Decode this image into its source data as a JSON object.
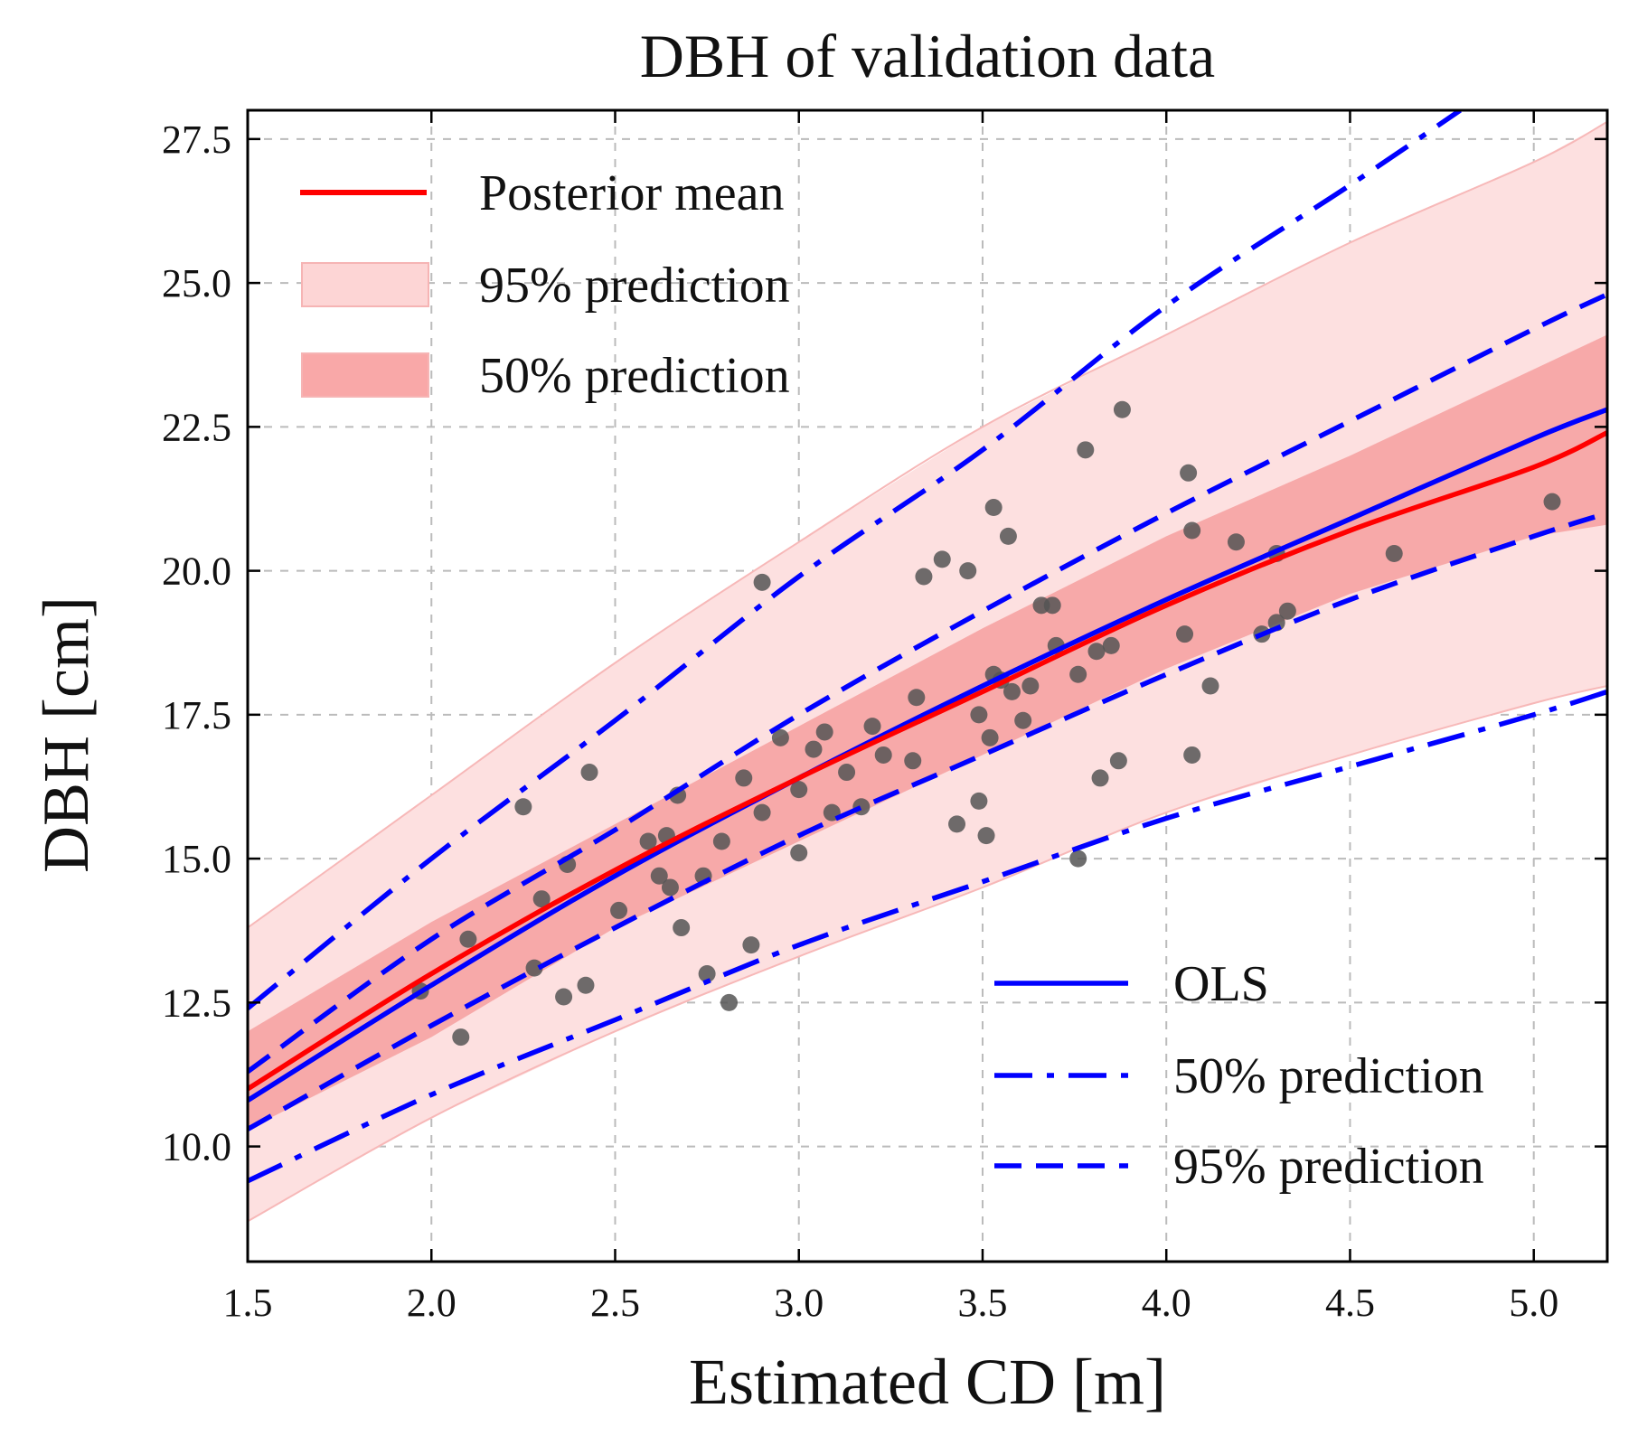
{
  "chart_data": {
    "type": "scatter",
    "title": "DBH of validation data",
    "xlabel": "Estimated CD [m]",
    "ylabel": "DBH [cm]",
    "xlim": [
      1.5,
      5.2
    ],
    "ylim": [
      8.0,
      28.0
    ],
    "xticks": [
      1.5,
      2.0,
      2.5,
      3.0,
      3.5,
      4.0,
      4.5,
      5.0
    ],
    "yticks": [
      10.0,
      12.5,
      15.0,
      17.5,
      20.0,
      22.5,
      25.0,
      27.5
    ],
    "grid": true,
    "legends": {
      "bayesian": {
        "placement": "top-left",
        "items": [
          {
            "label": "Posterior mean",
            "style": "line",
            "color": "#ff0000"
          },
          {
            "label": "95% prediction",
            "style": "band",
            "color": "#fdd5d5"
          },
          {
            "label": "50% prediction",
            "style": "band",
            "color": "#f9a8a8"
          }
        ]
      },
      "ols": {
        "placement": "bottom-right",
        "items": [
          {
            "label": "OLS",
            "style": "solid",
            "color": "#0000ff"
          },
          {
            "label": "50% prediction",
            "style": "dashdot",
            "color": "#0000ff"
          },
          {
            "label": "95% prediction",
            "style": "dashed",
            "color": "#0000ff"
          }
        ]
      }
    },
    "curves": {
      "posterior_mean": {
        "x": [
          1.5,
          2.0,
          2.5,
          3.0,
          3.5,
          4.0,
          4.5,
          5.0,
          5.2
        ],
        "y": [
          11.0,
          13.0,
          14.8,
          16.4,
          17.9,
          19.4,
          20.7,
          21.8,
          22.4
        ]
      },
      "band95_upper": {
        "x": [
          1.5,
          2.0,
          2.5,
          3.0,
          3.5,
          4.0,
          4.5,
          5.0,
          5.2
        ],
        "y": [
          13.8,
          16.1,
          18.4,
          20.5,
          22.5,
          24.1,
          25.7,
          27.1,
          27.8
        ]
      },
      "band95_lower": {
        "x": [
          1.5,
          2.0,
          2.5,
          3.0,
          3.5,
          4.0,
          4.5,
          5.0,
          5.2
        ],
        "y": [
          8.7,
          10.5,
          12.0,
          13.3,
          14.5,
          15.8,
          16.8,
          17.7,
          18.0
        ]
      },
      "band50_upper": {
        "x": [
          1.5,
          2.0,
          2.5,
          3.0,
          3.5,
          4.0,
          4.5,
          5.0,
          5.2
        ],
        "y": [
          12.0,
          13.9,
          15.6,
          17.3,
          19.0,
          20.6,
          22.0,
          23.5,
          24.1
        ]
      },
      "band50_lower": {
        "x": [
          1.5,
          2.0,
          2.5,
          3.0,
          3.5,
          4.0,
          4.5,
          5.0,
          5.2
        ],
        "y": [
          10.3,
          11.9,
          13.8,
          15.3,
          16.8,
          18.3,
          19.6,
          20.6,
          20.8
        ]
      },
      "ols": {
        "x": [
          1.5,
          2.0,
          2.5,
          3.0,
          3.5,
          4.0,
          4.5,
          5.0,
          5.2
        ],
        "y": [
          10.8,
          12.8,
          14.7,
          16.4,
          18.0,
          19.5,
          20.9,
          22.3,
          22.8
        ]
      },
      "ols_pi50_upper": {
        "x": [
          1.5,
          2.0,
          2.5,
          3.0,
          3.5,
          4.0,
          4.5,
          5.0,
          5.2
        ],
        "y": [
          11.3,
          13.6,
          15.5,
          17.5,
          19.3,
          21.0,
          22.6,
          24.2,
          24.8
        ]
      },
      "ols_pi50_lower": {
        "x": [
          1.5,
          2.0,
          2.5,
          3.0,
          3.5,
          4.0,
          4.5,
          5.0,
          5.2
        ],
        "y": [
          10.3,
          12.1,
          13.8,
          15.4,
          16.8,
          18.2,
          19.5,
          20.6,
          21.0
        ]
      },
      "ols_pi95_upper": {
        "x": [
          1.5,
          2.0,
          2.5,
          3.0,
          3.5,
          4.0,
          4.5,
          4.8
        ],
        "y": [
          12.4,
          15.0,
          17.4,
          19.9,
          22.1,
          24.6,
          26.7,
          28.0
        ]
      },
      "ols_pi95_lower": {
        "x": [
          1.5,
          2.0,
          2.5,
          3.0,
          3.5,
          4.0,
          4.5,
          5.0,
          5.2
        ],
        "y": [
          9.4,
          10.9,
          12.2,
          13.5,
          14.6,
          15.7,
          16.6,
          17.5,
          17.9
        ]
      }
    },
    "points": {
      "color": "#555555",
      "x": [
        1.97,
        2.08,
        2.1,
        2.25,
        2.28,
        2.3,
        2.36,
        2.37,
        2.42,
        2.43,
        2.51,
        2.59,
        2.62,
        2.64,
        2.65,
        2.67,
        2.68,
        2.74,
        2.75,
        2.79,
        2.81,
        2.85,
        2.87,
        2.9,
        2.9,
        2.95,
        3.0,
        3.0,
        3.04,
        3.07,
        3.09,
        3.13,
        3.17,
        3.2,
        3.23,
        3.31,
        3.32,
        3.34,
        3.39,
        3.43,
        3.46,
        3.49,
        3.49,
        3.51,
        3.52,
        3.53,
        3.53,
        3.55,
        3.57,
        3.58,
        3.61,
        3.63,
        3.66,
        3.69,
        3.7,
        3.76,
        3.76,
        3.78,
        3.81,
        3.82,
        3.85,
        3.87,
        3.88,
        4.05,
        4.06,
        4.07,
        4.07,
        4.12,
        4.19,
        4.26,
        4.3,
        4.3,
        4.33,
        4.62,
        5.05
      ],
      "y": [
        12.7,
        11.9,
        13.6,
        15.9,
        13.1,
        14.3,
        12.6,
        14.9,
        12.8,
        16.5,
        14.1,
        15.3,
        14.7,
        15.4,
        14.5,
        16.1,
        13.8,
        14.7,
        13.0,
        15.3,
        12.5,
        16.4,
        13.5,
        19.8,
        15.8,
        17.1,
        15.1,
        16.2,
        16.9,
        17.2,
        15.8,
        16.5,
        15.9,
        17.3,
        16.8,
        16.7,
        17.8,
        19.9,
        20.2,
        15.6,
        20.0,
        17.5,
        16.0,
        15.4,
        17.1,
        21.1,
        18.2,
        18.1,
        20.6,
        17.9,
        17.4,
        18.0,
        19.4,
        19.4,
        18.7,
        15.0,
        18.2,
        22.1,
        18.6,
        16.4,
        18.7,
        16.7,
        22.8,
        18.9,
        21.7,
        20.7,
        16.8,
        18.0,
        20.5,
        18.9,
        19.1,
        20.3,
        19.3,
        20.3,
        21.2
      ]
    }
  }
}
